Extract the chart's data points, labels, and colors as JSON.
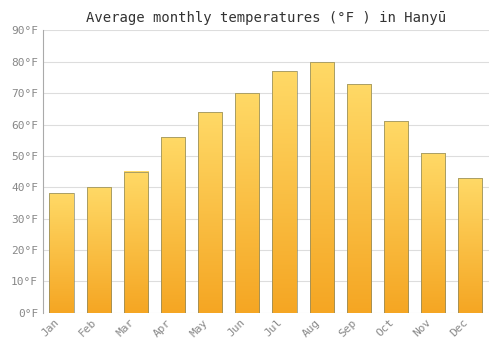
{
  "title": "Average monthly temperatures (°F ) in Hanyū",
  "months": [
    "Jan",
    "Feb",
    "Mar",
    "Apr",
    "May",
    "Jun",
    "Jul",
    "Aug",
    "Sep",
    "Oct",
    "Nov",
    "Dec"
  ],
  "values": [
    38,
    40,
    45,
    56,
    64,
    70,
    77,
    80,
    73,
    61,
    51,
    43
  ],
  "bar_color_bottom": "#F5A623",
  "bar_color_top": "#FFD966",
  "bar_edge_color": "#888866",
  "ylim": [
    0,
    90
  ],
  "yticks": [
    0,
    10,
    20,
    30,
    40,
    50,
    60,
    70,
    80,
    90
  ],
  "background_color": "#FFFFFF",
  "plot_bg_color": "#FFFFFF",
  "grid_color": "#DDDDDD",
  "title_fontsize": 10,
  "tick_fontsize": 8,
  "label_color": "#888888",
  "n_gradient_steps": 100
}
